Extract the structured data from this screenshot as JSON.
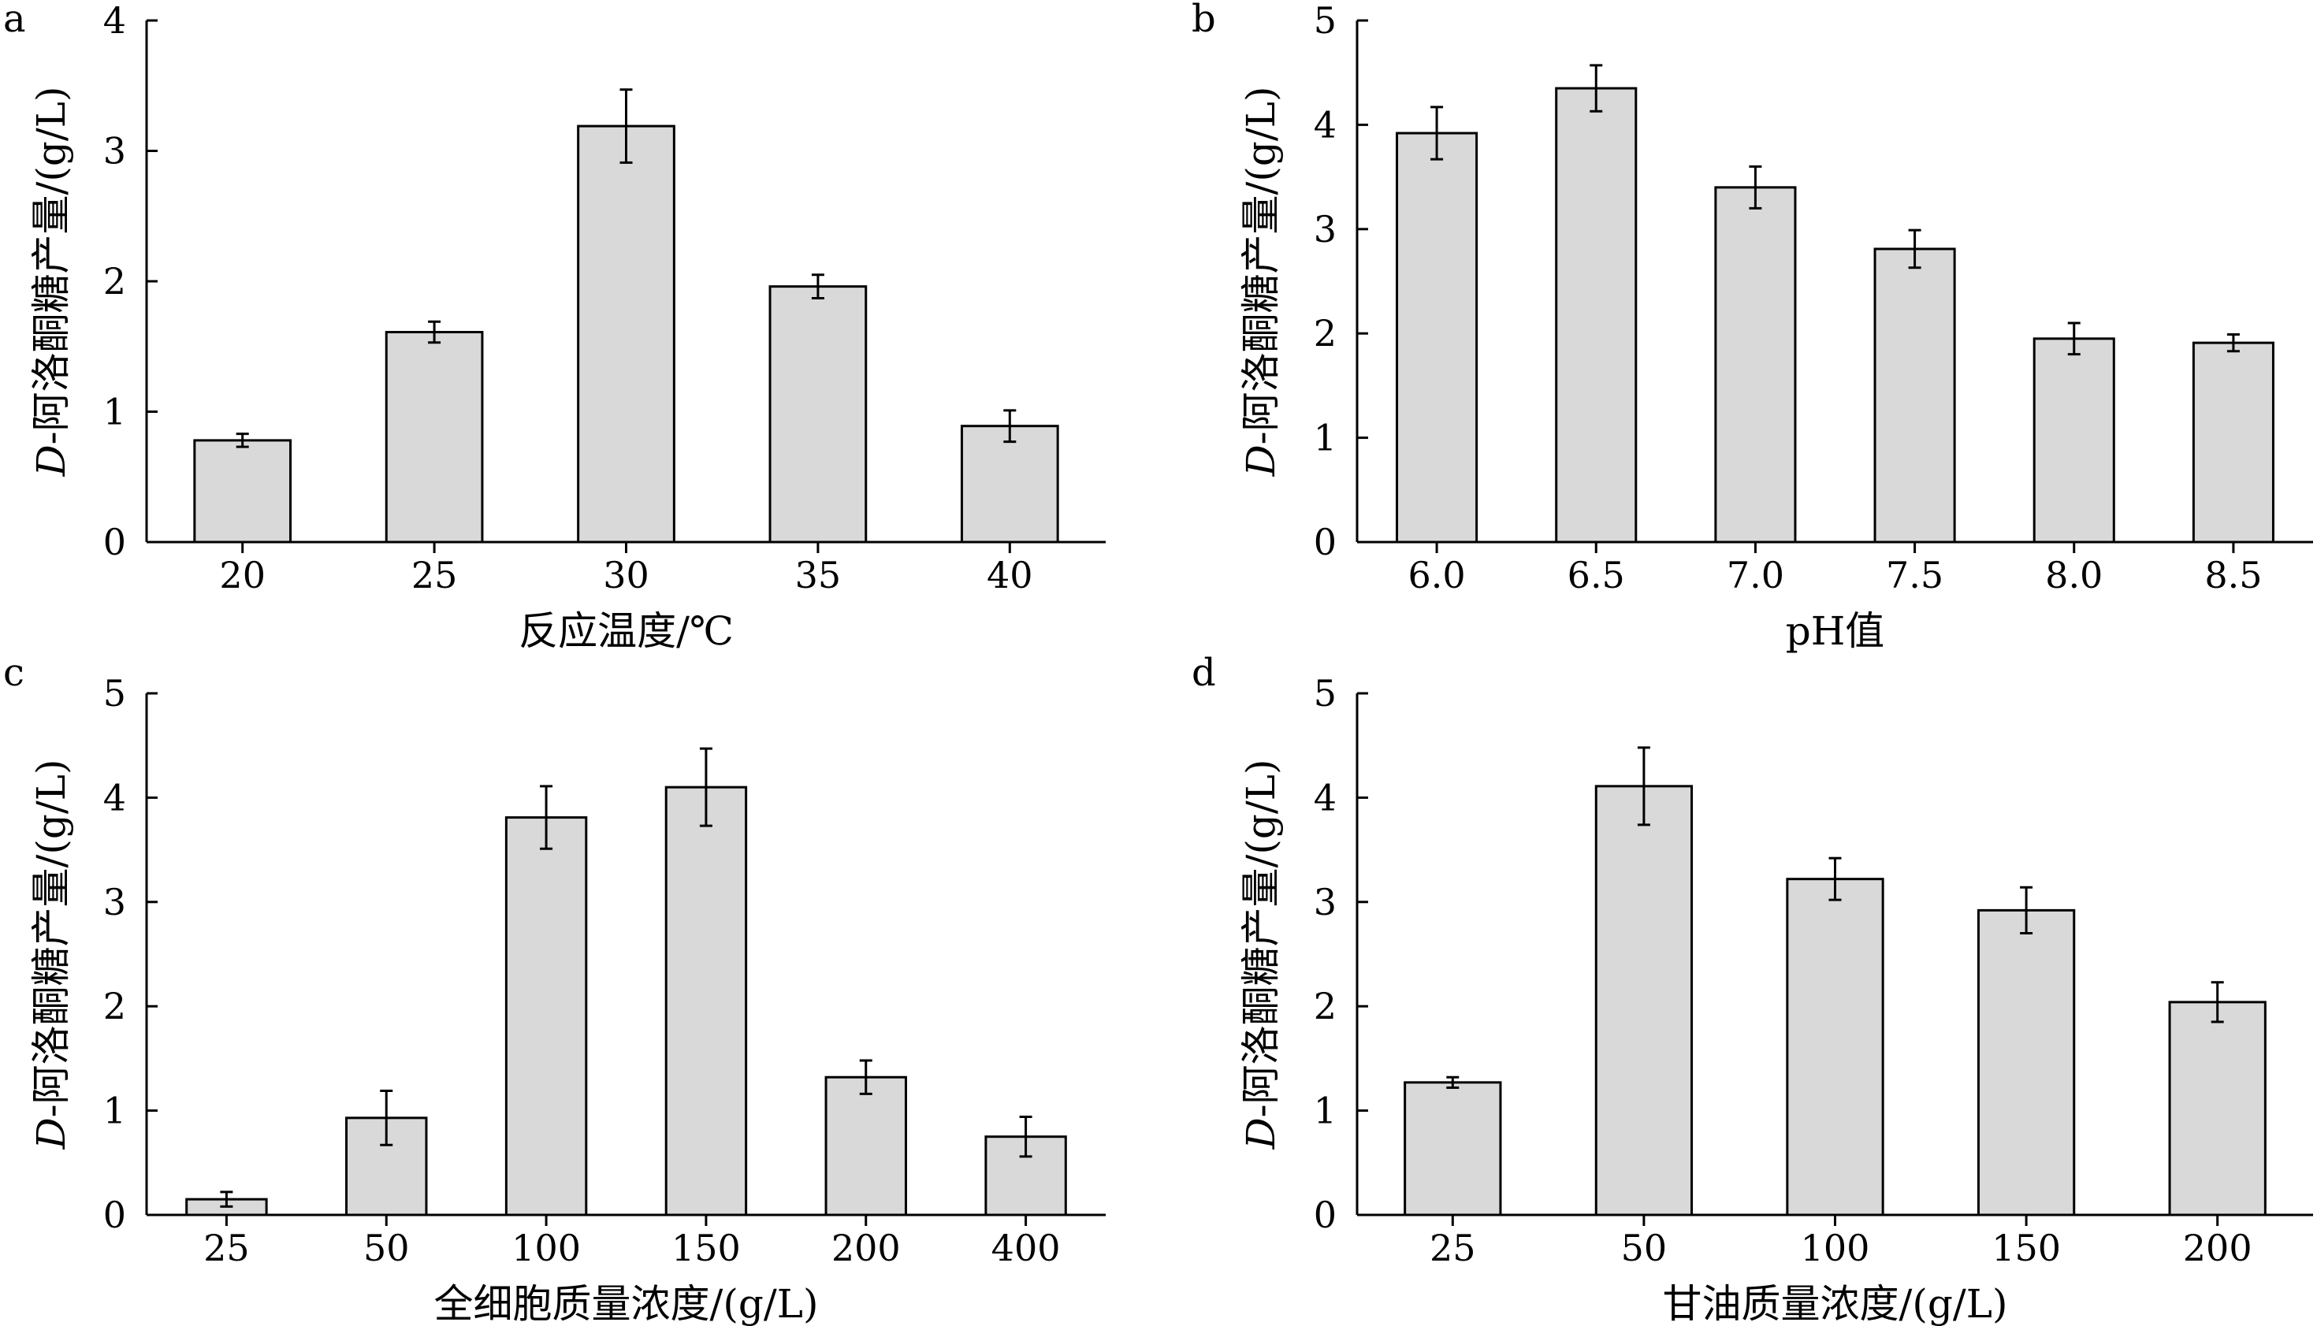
{
  "colors": {
    "bar_fill": "#d9d9d9",
    "bar_stroke": "#000000",
    "axis": "#000000",
    "background": "#ffffff"
  },
  "chart_data": [
    {
      "panel": "a",
      "type": "bar",
      "categories": [
        "20",
        "25",
        "30",
        "35",
        "40"
      ],
      "values": [
        0.78,
        1.61,
        3.19,
        1.96,
        0.89
      ],
      "errors": [
        0.05,
        0.08,
        0.28,
        0.09,
        0.12
      ],
      "xlabel": "反应温度/℃",
      "ylabel_italic": "D",
      "ylabel": "-阿洛酮糖产量/(g/L)",
      "ylim": [
        0,
        4
      ],
      "yticks": [
        "0",
        "1",
        "2",
        "3",
        "4"
      ]
    },
    {
      "panel": "b",
      "type": "bar",
      "categories": [
        "6.0",
        "6.5",
        "7.0",
        "7.5",
        "8.0",
        "8.5"
      ],
      "values": [
        3.92,
        4.35,
        3.4,
        2.81,
        1.95,
        1.91
      ],
      "errors": [
        0.25,
        0.22,
        0.2,
        0.18,
        0.15,
        0.08
      ],
      "xlabel": "pH值",
      "ylabel_italic": "D",
      "ylabel": "-阿洛酮糖产量/(g/L)",
      "ylim": [
        0,
        5
      ],
      "yticks": [
        "0",
        "1",
        "2",
        "3",
        "4",
        "5"
      ]
    },
    {
      "panel": "c",
      "type": "bar",
      "categories": [
        "25",
        "50",
        "100",
        "150",
        "200",
        "400"
      ],
      "values": [
        0.15,
        0.93,
        3.81,
        4.1,
        1.32,
        0.75
      ],
      "errors": [
        0.07,
        0.26,
        0.3,
        0.37,
        0.16,
        0.19
      ],
      "xlabel": "全细胞质量浓度/(g/L)",
      "ylabel_italic": "D",
      "ylabel": "-阿洛酮糖产量/(g/L)",
      "ylim": [
        0,
        5
      ],
      "yticks": [
        "0",
        "1",
        "2",
        "3",
        "4",
        "5"
      ]
    },
    {
      "panel": "d",
      "type": "bar",
      "categories": [
        "25",
        "50",
        "100",
        "150",
        "200"
      ],
      "values": [
        1.27,
        4.11,
        3.22,
        2.92,
        2.04
      ],
      "errors": [
        0.05,
        0.37,
        0.2,
        0.22,
        0.19
      ],
      "xlabel": "甘油质量浓度/(g/L)",
      "ylabel_italic": "D",
      "ylabel": "-阿洛酮糖产量/(g/L)",
      "ylim": [
        0,
        5
      ],
      "yticks": [
        "0",
        "1",
        "2",
        "3",
        "4",
        "5"
      ]
    }
  ]
}
